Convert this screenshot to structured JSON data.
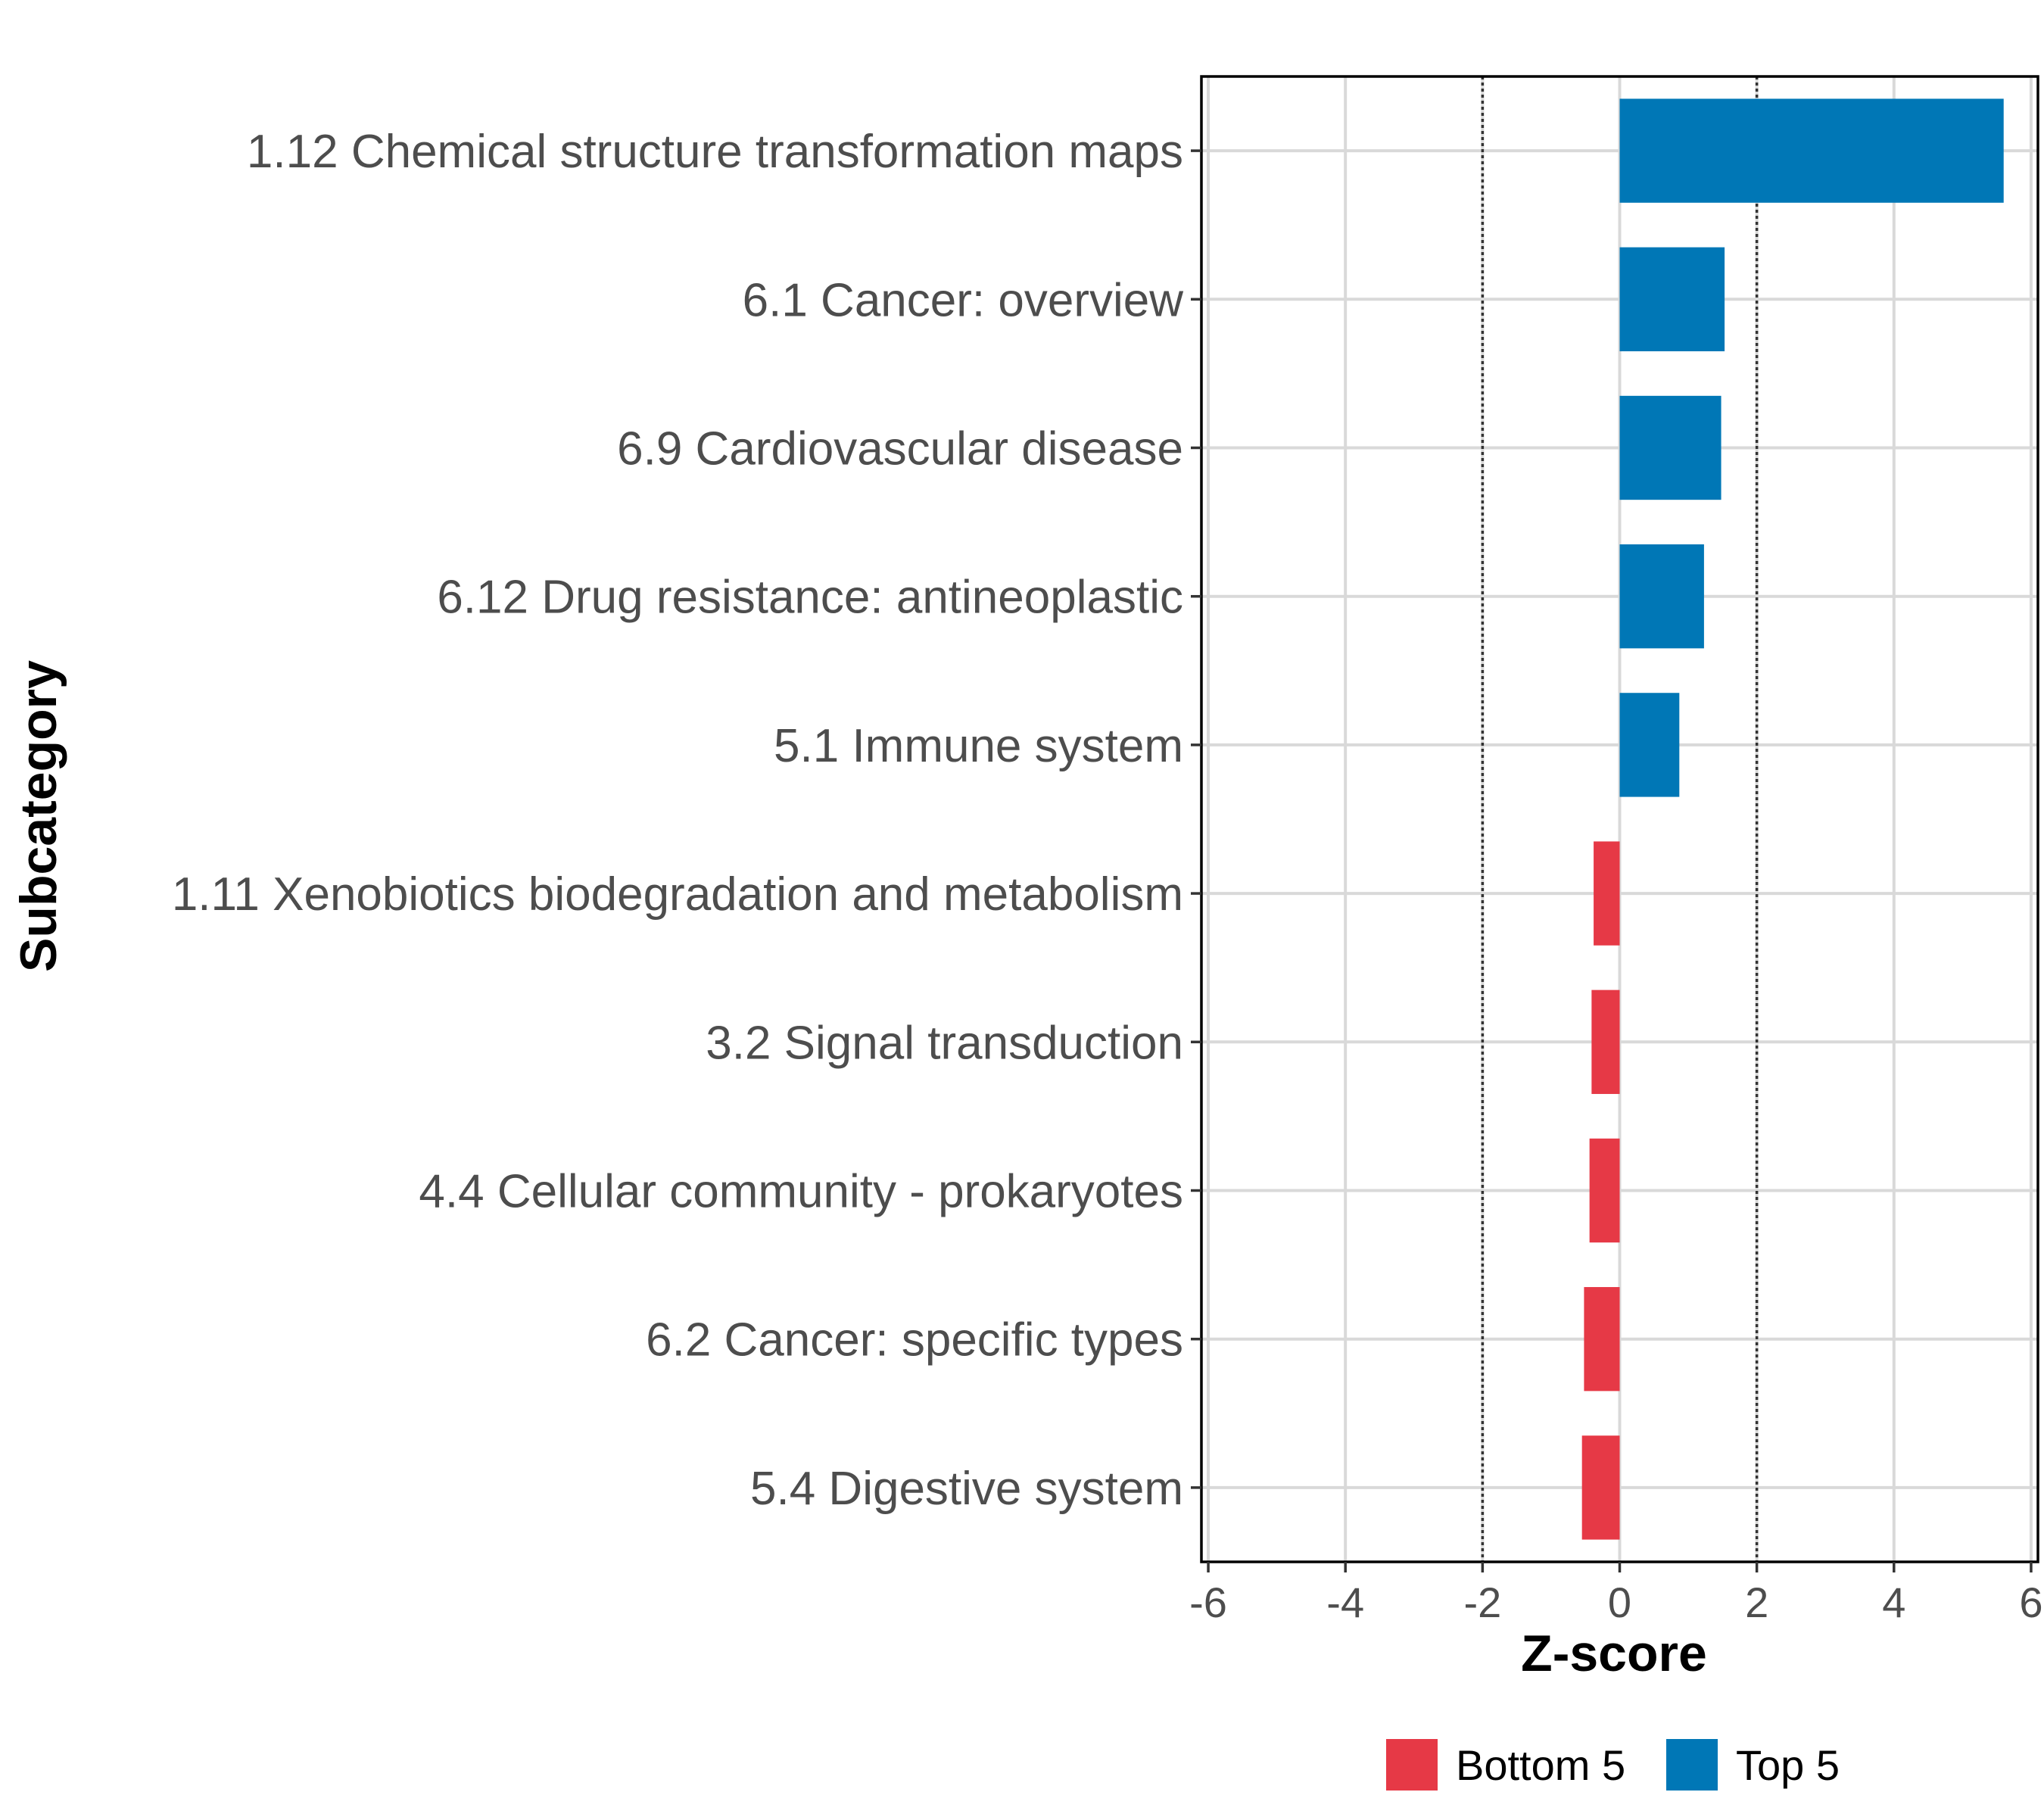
{
  "chart_data": {
    "type": "bar",
    "orientation": "horizontal",
    "title": "",
    "xlabel": "Z-score",
    "ylabel": "Subcategory",
    "xlim": [
      -6.1,
      6.1
    ],
    "xticks": [
      -6,
      -4,
      -2,
      0,
      2,
      4,
      6
    ],
    "xtick_labels": [
      "-6",
      "-4",
      "-2",
      "0",
      "2",
      "4",
      "6"
    ],
    "reference_lines": [
      -2,
      2
    ],
    "grid": true,
    "legend_position": "bottom",
    "categories": [
      "1.12 Chemical structure transformation maps",
      "6.1 Cancer: overview",
      "6.9 Cardiovascular disease",
      "6.12 Drug resistance: antineoplastic",
      "5.1 Immune system",
      "1.11 Xenobiotics biodegradation and metabolism",
      "3.2 Signal transduction",
      "4.4 Cellular community - prokaryotes",
      "6.2 Cancer: specific types",
      "5.4 Digestive system"
    ],
    "values": [
      5.6,
      1.53,
      1.48,
      1.23,
      0.87,
      -0.38,
      -0.41,
      -0.44,
      -0.52,
      -0.55
    ],
    "groups": [
      "Top 5",
      "Top 5",
      "Top 5",
      "Top 5",
      "Top 5",
      "Bottom 5",
      "Bottom 5",
      "Bottom 5",
      "Bottom 5",
      "Bottom 5"
    ],
    "legend": [
      {
        "name": "Bottom 5",
        "color": "#e63946"
      },
      {
        "name": "Top 5",
        "color": "#0077b6"
      }
    ]
  }
}
